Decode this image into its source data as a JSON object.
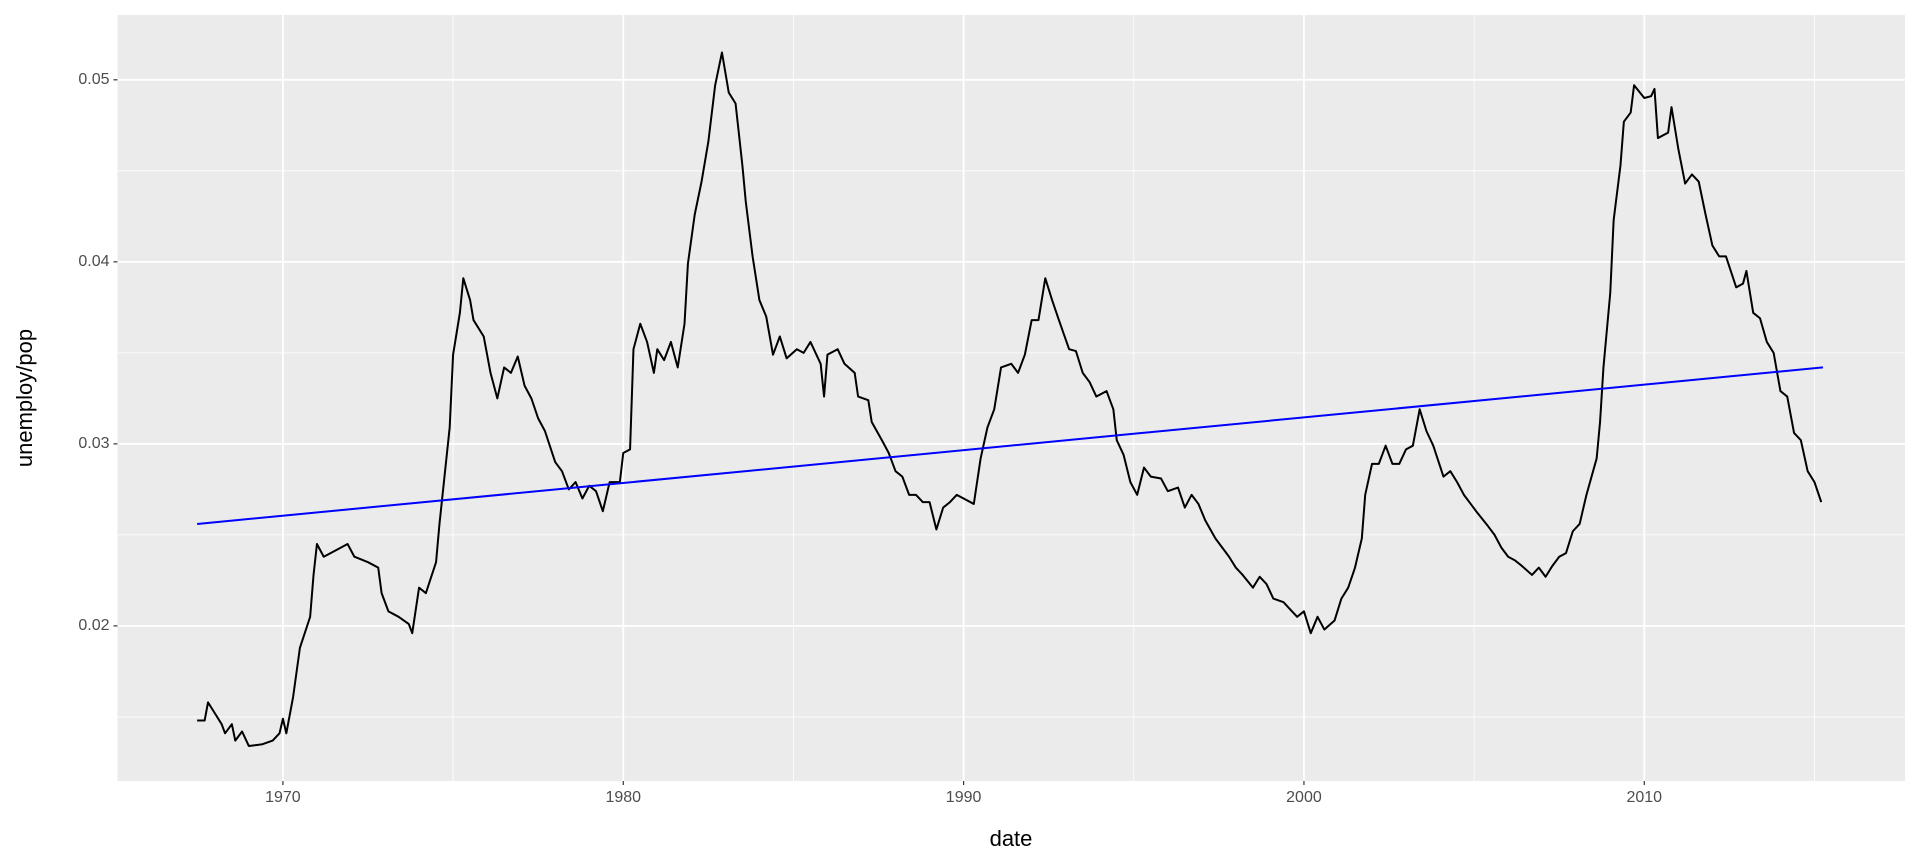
{
  "chart_data": {
    "type": "line",
    "x_label": "date",
    "y_label": "unemploy/pop",
    "xlim": [
      1965.14,
      2017.66
    ],
    "ylim": [
      0.01148,
      0.05356
    ],
    "xticks": [
      1970,
      1980,
      1990,
      2000,
      2010
    ],
    "yticks": [
      0.02,
      0.03,
      0.04,
      0.05
    ],
    "x_minor_grid": [
      1965,
      1975,
      1985,
      1995,
      2005,
      2015
    ],
    "y_minor_grid": [
      0.015,
      0.025,
      0.035,
      0.045
    ],
    "grid": true,
    "series": [
      {
        "color": "#000000",
        "x": [
          1967.48,
          1967.7,
          1967.8,
          1968.0,
          1968.2,
          1968.3,
          1968.5,
          1968.6,
          1968.8,
          1969.0,
          1969.4,
          1969.7,
          1969.9,
          1970.0,
          1970.1,
          1970.3,
          1970.5,
          1970.8,
          1970.9,
          1971.0,
          1971.2,
          1971.6,
          1971.9,
          1972.1,
          1972.5,
          1972.8,
          1972.9,
          1973.1,
          1973.4,
          1973.7,
          1973.8,
          1974.0,
          1974.2,
          1974.5,
          1974.6,
          1974.9,
          1975.0,
          1975.2,
          1975.3,
          1975.5,
          1975.6,
          1975.9,
          1976.1,
          1976.3,
          1976.5,
          1976.7,
          1976.9,
          1977.1,
          1977.3,
          1977.5,
          1977.7,
          1978.0,
          1978.2,
          1978.4,
          1978.6,
          1978.8,
          1979.0,
          1979.2,
          1979.4,
          1979.6,
          1979.9,
          1980.0,
          1980.2,
          1980.3,
          1980.5,
          1980.7,
          1980.9,
          1981.0,
          1981.2,
          1981.4,
          1981.6,
          1981.8,
          1981.9,
          1982.1,
          1982.3,
          1982.5,
          1982.7,
          1982.9,
          1983.1,
          1983.3,
          1983.5,
          1983.6,
          1983.8,
          1984.0,
          1984.2,
          1984.4,
          1984.6,
          1984.8,
          1985.1,
          1985.3,
          1985.5,
          1985.8,
          1985.9,
          1986.0,
          1986.3,
          1986.5,
          1986.8,
          1986.9,
          1987.2,
          1987.3,
          1987.6,
          1987.8,
          1988.0,
          1988.2,
          1988.4,
          1988.6,
          1988.8,
          1989.0,
          1989.2,
          1989.4,
          1989.6,
          1989.8,
          1990.0,
          1990.3,
          1990.5,
          1990.7,
          1990.9,
          1991.1,
          1991.4,
          1991.6,
          1991.8,
          1992.0,
          1992.2,
          1992.4,
          1992.6,
          1992.8,
          1993.1,
          1993.3,
          1993.5,
          1993.7,
          1993.9,
          1994.2,
          1994.4,
          1994.5,
          1994.7,
          1994.9,
          1995.1,
          1995.3,
          1995.5,
          1995.8,
          1996.0,
          1996.3,
          1996.5,
          1996.7,
          1996.9,
          1997.1,
          1997.4,
          1997.6,
          1997.8,
          1998.0,
          1998.2,
          1998.5,
          1998.7,
          1998.9,
          1999.1,
          1999.4,
          1999.6,
          1999.8,
          2000.0,
          2000.2,
          2000.4,
          2000.6,
          2000.9,
          2001.1,
          2001.3,
          2001.5,
          2001.7,
          2001.8,
          2002.0,
          2002.2,
          2002.4,
          2002.6,
          2002.8,
          2003.0,
          2003.2,
          2003.4,
          2003.6,
          2003.8,
          2004.1,
          2004.3,
          2004.5,
          2004.7,
          2004.9,
          2005.1,
          2005.4,
          2005.6,
          2005.8,
          2006.0,
          2006.2,
          2006.4,
          2006.7,
          2006.9,
          2007.1,
          2007.3,
          2007.5,
          2007.7,
          2007.9,
          2008.1,
          2008.3,
          2008.6,
          2008.7,
          2008.8,
          2009.0,
          2009.1,
          2009.3,
          2009.4,
          2009.6,
          2009.7,
          2010.0,
          2010.2,
          2010.3,
          2010.4,
          2010.7,
          2010.8,
          2011.0,
          2011.2,
          2011.4,
          2011.6,
          2011.8,
          2012.0,
          2012.2,
          2012.4,
          2012.7,
          2012.9,
          2013.0,
          2013.2,
          2013.4,
          2013.6,
          2013.8,
          2014.0,
          2014.2,
          2014.4,
          2014.6,
          2014.8,
          2015.0,
          2015.2
        ],
        "values": [
          0.0148,
          0.0148,
          0.0158,
          0.0152,
          0.0146,
          0.0141,
          0.0146,
          0.0137,
          0.0142,
          0.0134,
          0.0135,
          0.0137,
          0.0141,
          0.0149,
          0.0141,
          0.0161,
          0.0188,
          0.0205,
          0.0228,
          0.0245,
          0.0238,
          0.0242,
          0.0245,
          0.0238,
          0.0235,
          0.0232,
          0.0218,
          0.0208,
          0.0205,
          0.0201,
          0.0196,
          0.0221,
          0.0218,
          0.0235,
          0.0256,
          0.0309,
          0.0349,
          0.0372,
          0.0391,
          0.0379,
          0.0368,
          0.0359,
          0.0339,
          0.0325,
          0.0342,
          0.0339,
          0.0348,
          0.0332,
          0.0325,
          0.0314,
          0.0307,
          0.029,
          0.0285,
          0.0275,
          0.0279,
          0.027,
          0.0277,
          0.0274,
          0.0263,
          0.0279,
          0.0279,
          0.0295,
          0.0297,
          0.0352,
          0.0366,
          0.0356,
          0.0339,
          0.0352,
          0.0346,
          0.0356,
          0.0342,
          0.0366,
          0.0399,
          0.0426,
          0.0444,
          0.0466,
          0.0497,
          0.0515,
          0.0493,
          0.0487,
          0.0453,
          0.0433,
          0.0403,
          0.0379,
          0.037,
          0.0349,
          0.0359,
          0.0347,
          0.0352,
          0.035,
          0.0356,
          0.0344,
          0.0326,
          0.0349,
          0.0352,
          0.0344,
          0.0339,
          0.0326,
          0.0324,
          0.0312,
          0.0302,
          0.0295,
          0.0285,
          0.0282,
          0.0272,
          0.0272,
          0.0268,
          0.0268,
          0.0253,
          0.0265,
          0.0268,
          0.0272,
          0.027,
          0.0267,
          0.0292,
          0.0309,
          0.0319,
          0.0342,
          0.0344,
          0.0339,
          0.0349,
          0.0368,
          0.0368,
          0.0391,
          0.0379,
          0.0368,
          0.0352,
          0.0351,
          0.0339,
          0.0334,
          0.0326,
          0.0329,
          0.0319,
          0.0302,
          0.0294,
          0.0279,
          0.0272,
          0.0287,
          0.0282,
          0.0281,
          0.0274,
          0.0276,
          0.0265,
          0.0272,
          0.0267,
          0.0258,
          0.0248,
          0.0243,
          0.0238,
          0.0232,
          0.0228,
          0.0221,
          0.0227,
          0.0223,
          0.0215,
          0.0213,
          0.0209,
          0.0205,
          0.0208,
          0.0196,
          0.0205,
          0.0198,
          0.0203,
          0.0215,
          0.0221,
          0.0232,
          0.0248,
          0.0272,
          0.0289,
          0.0289,
          0.0299,
          0.0289,
          0.0289,
          0.0297,
          0.0299,
          0.0319,
          0.0307,
          0.0299,
          0.0282,
          0.0285,
          0.0279,
          0.0272,
          0.0267,
          0.0262,
          0.0255,
          0.025,
          0.0243,
          0.0238,
          0.0236,
          0.0233,
          0.0228,
          0.0232,
          0.0227,
          0.0233,
          0.0238,
          0.024,
          0.0252,
          0.0256,
          0.0272,
          0.0292,
          0.0312,
          0.0342,
          0.0383,
          0.0423,
          0.0453,
          0.0477,
          0.0482,
          0.0497,
          0.049,
          0.0491,
          0.0495,
          0.0468,
          0.0471,
          0.0485,
          0.0462,
          0.0443,
          0.0448,
          0.0444,
          0.0426,
          0.0409,
          0.0403,
          0.0403,
          0.0386,
          0.0388,
          0.0395,
          0.0372,
          0.0369,
          0.0356,
          0.035,
          0.0329,
          0.0326,
          0.0306,
          0.0302,
          0.0285,
          0.0279,
          0.0268
        ]
      },
      {
        "color": "#0000ff",
        "x": [
          1967.48,
          2015.25
        ],
        "values": [
          0.0256,
          0.0342
        ]
      }
    ]
  }
}
